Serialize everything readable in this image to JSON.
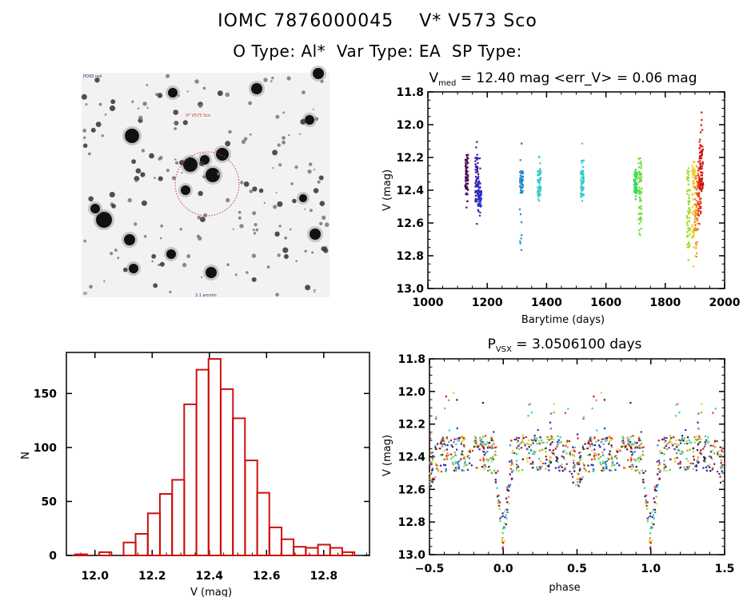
{
  "header": {
    "line1": "IOMC 7876000045    V* V573 Sco",
    "line2": "O Type: Al*  Var Type: EA  SP Type:"
  },
  "image_panel": {
    "type": "finder-chart",
    "top_left_label": "POSS red",
    "target_label": "V* V573 Sco",
    "bottom_center_label": "2.1 arcmin",
    "bottom_left_label": "W",
    "bottom_right_label": "E",
    "circle_color": "#cc3333"
  },
  "chart_data": [
    {
      "id": "lightcurve",
      "type": "scatter",
      "title_main": "V",
      "title_sub": "med",
      "title_rest": " = 12.40 mag <err_V> = 0.06 mag",
      "xlabel": "Barytime (days)",
      "ylabel": "V (mag)",
      "xlim": [
        1000,
        2000
      ],
      "ylim": [
        13.0,
        11.8
      ],
      "y_inverted": true,
      "xticks": [
        "1000",
        "1200",
        "1400",
        "1600",
        "1800",
        "2000"
      ],
      "yticks": [
        "11.8",
        "12.0",
        "12.2",
        "12.4",
        "12.6",
        "12.8",
        "13.0"
      ],
      "groups": [
        {
          "x": 1130,
          "ymin": 12.18,
          "ymax": 12.5,
          "core": [
            12.2,
            12.4
          ],
          "color": "#4a0a55"
        },
        {
          "x": 1165,
          "ymin": 12.1,
          "ymax": 12.6,
          "core": [
            12.2,
            12.5
          ],
          "color": "#3a1a9a"
        },
        {
          "x": 1175,
          "ymin": 12.2,
          "ymax": 12.55,
          "core": [
            12.38,
            12.5
          ],
          "color": "#2233cc"
        },
        {
          "x": 1315,
          "ymin": 12.11,
          "ymax": 12.76,
          "core": [
            12.28,
            12.42
          ],
          "color": "#2a88cc"
        },
        {
          "x": 1375,
          "ymin": 12.19,
          "ymax": 12.46,
          "core": [
            12.28,
            12.44
          ],
          "color": "#33cccc"
        },
        {
          "x": 1520,
          "ymin": 12.11,
          "ymax": 12.46,
          "core": [
            12.28,
            12.44
          ],
          "color": "#33cccc"
        },
        {
          "x": 1700,
          "ymin": 12.27,
          "ymax": 12.45,
          "core": [
            12.3,
            12.42
          ],
          "color": "#33dd55"
        },
        {
          "x": 1715,
          "ymin": 12.2,
          "ymax": 12.67,
          "core": [
            12.22,
            12.6
          ],
          "color": "#66dd33"
        },
        {
          "x": 1878,
          "ymin": 12.26,
          "ymax": 12.82,
          "core": [
            12.28,
            12.75
          ],
          "color": "#99dd22"
        },
        {
          "x": 1895,
          "ymin": 12.22,
          "ymax": 12.86,
          "core": [
            12.25,
            12.7
          ],
          "color": "#eecc22"
        },
        {
          "x": 1905,
          "ymin": 12.25,
          "ymax": 12.8,
          "core": [
            12.28,
            12.65
          ],
          "color": "#ee8822"
        },
        {
          "x": 1915,
          "ymin": 12.1,
          "ymax": 12.6,
          "core": [
            12.2,
            12.55
          ],
          "color": "#ee3311"
        },
        {
          "x": 1922,
          "ymin": 11.92,
          "ymax": 12.4,
          "core": [
            12.12,
            12.4
          ],
          "color": "#cc1111"
        }
      ]
    },
    {
      "id": "histogram",
      "type": "bar",
      "title": "",
      "xlabel": "V (mag)",
      "ylabel": "N",
      "xlim": [
        11.9,
        12.96
      ],
      "ylim": [
        0,
        188
      ],
      "xticks": [
        "12.0",
        "12.2",
        "12.4",
        "12.6",
        "12.8"
      ],
      "yticks": [
        "0",
        "50",
        "100",
        "150"
      ],
      "bin_width": 0.0425,
      "bin_starts": [
        11.93,
        11.972,
        12.015,
        12.057,
        12.1,
        12.142,
        12.185,
        12.227,
        12.27,
        12.312,
        12.355,
        12.397,
        12.44,
        12.482,
        12.525,
        12.567,
        12.61,
        12.652,
        12.695,
        12.737,
        12.78,
        12.822,
        12.865
      ],
      "values": [
        1,
        0,
        3,
        0,
        12,
        20,
        39,
        57,
        70,
        140,
        172,
        182,
        154,
        127,
        88,
        58,
        26,
        15,
        8,
        7,
        10,
        7,
        3
      ],
      "bar_color": "#cc1111"
    },
    {
      "id": "phased",
      "type": "scatter",
      "title_main": "P",
      "title_sub": "VSX",
      "title_rest": " = 3.0506100 days",
      "xlabel": "phase",
      "ylabel": "V (mag)",
      "xlim": [
        -0.5,
        1.5
      ],
      "ylim": [
        13.0,
        11.8
      ],
      "y_inverted": true,
      "xticks": [
        "-0.5",
        "0.0",
        "0.5",
        "1.0",
        "1.5"
      ],
      "yticks": [
        "11.8",
        "12.0",
        "12.2",
        "12.4",
        "12.6",
        "12.8",
        "13.0"
      ],
      "period_days": 3.05061,
      "primary_eclipse": {
        "phase": 0.0,
        "depth_mag": 12.88
      },
      "baseline_mag": 12.38,
      "palette": [
        "#4a0a55",
        "#3a1a9a",
        "#2233cc",
        "#2a88cc",
        "#33cccc",
        "#33dd55",
        "#99dd22",
        "#eecc22",
        "#ee8822",
        "#ee3311",
        "#cc1111"
      ]
    }
  ]
}
